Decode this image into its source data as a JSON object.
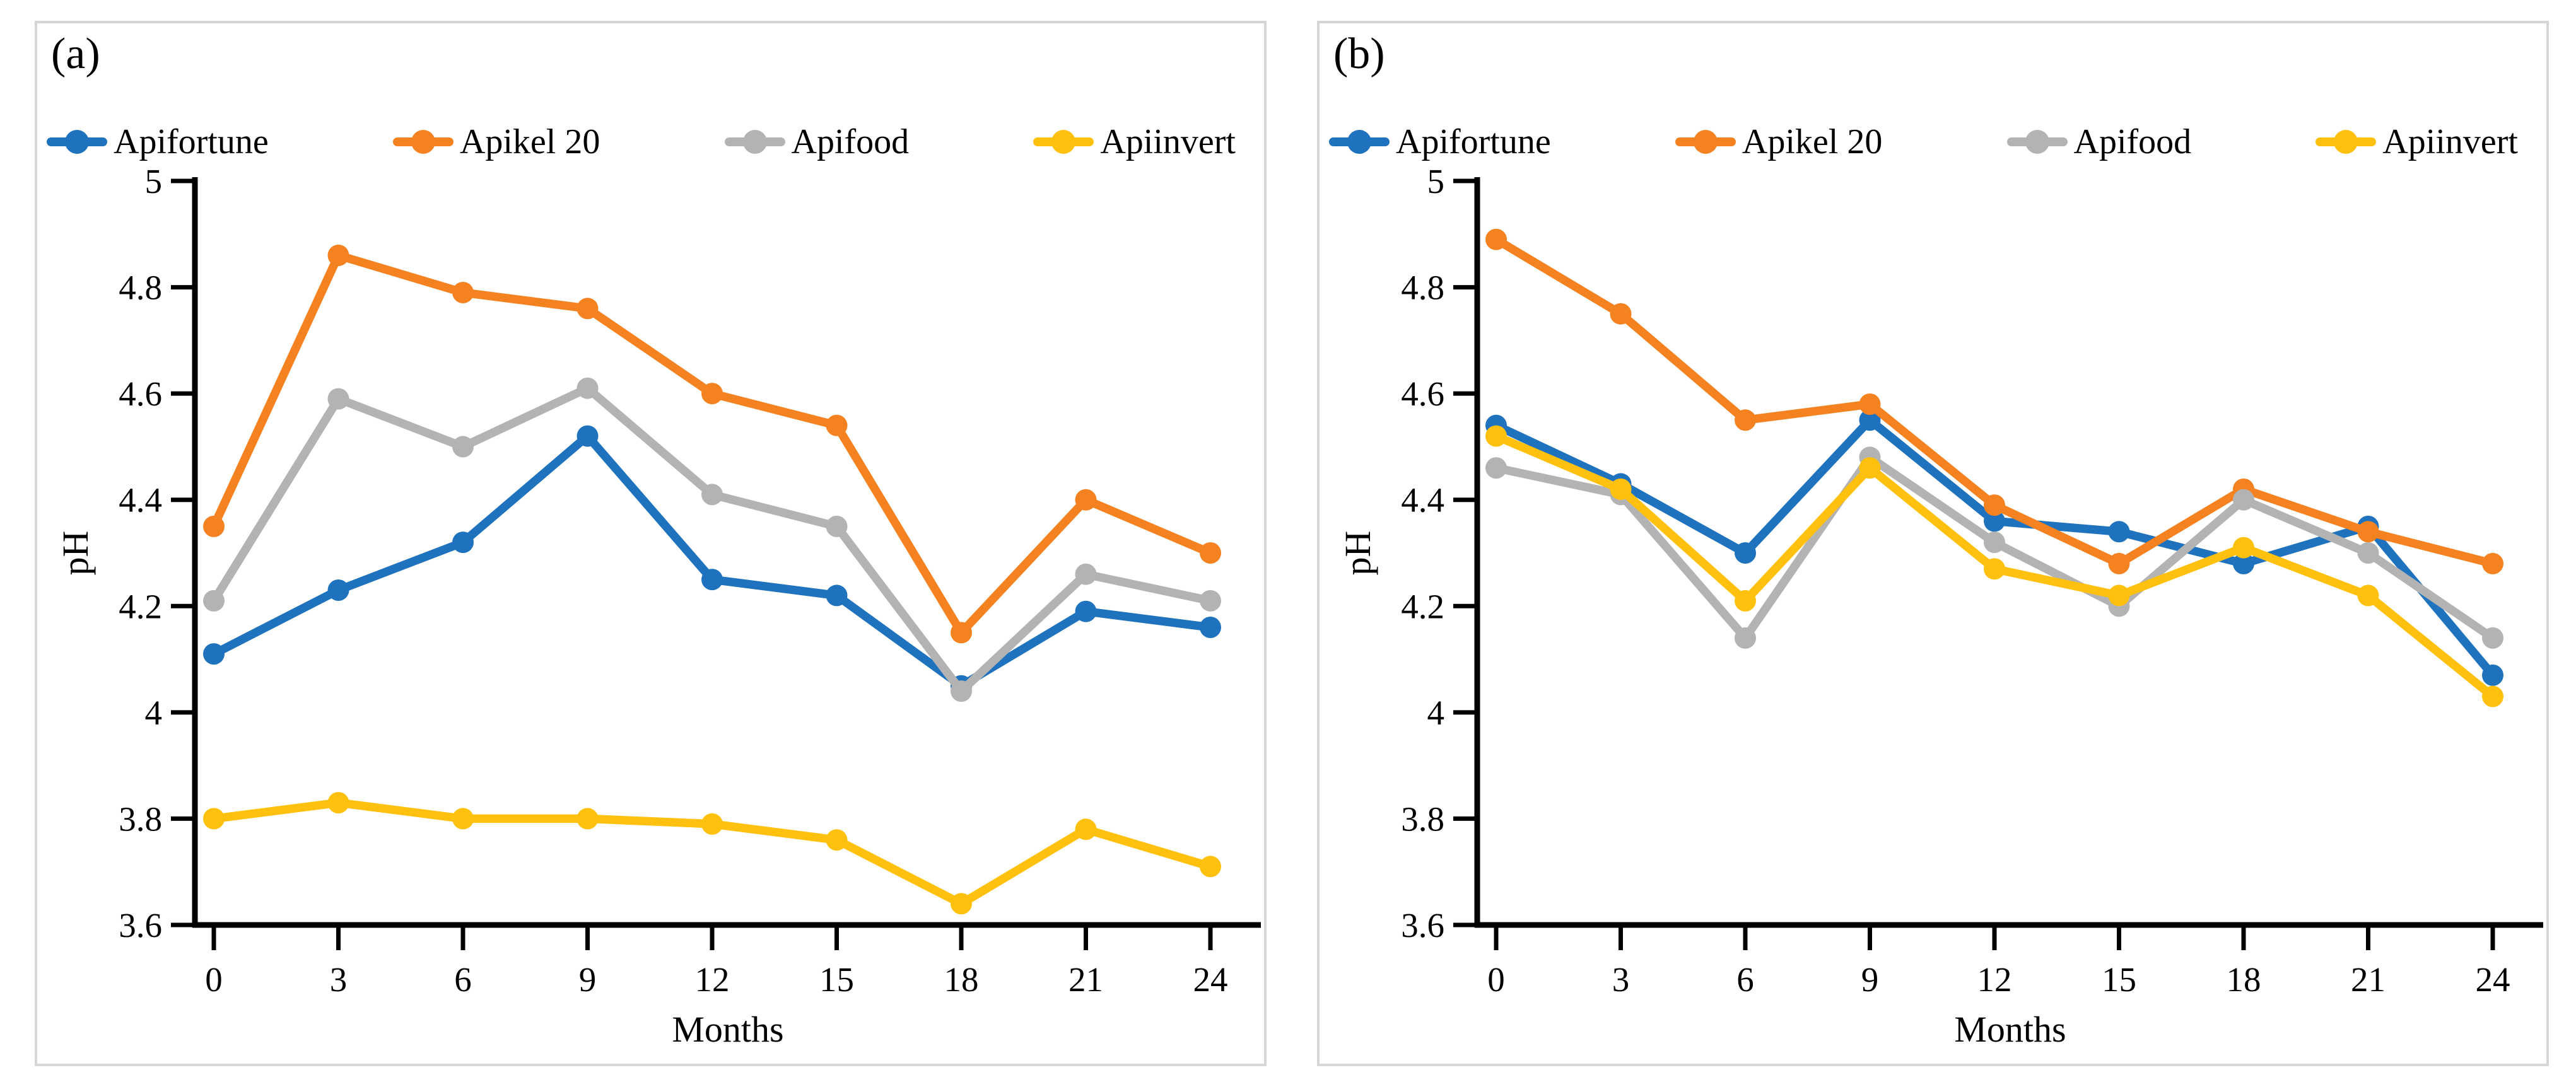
{
  "figure_background": "#ffffff",
  "panel_border_color": "#d6d6d6",
  "axis_color": "#000000",
  "chart_data": [
    {
      "type": "line",
      "panel_label": "(a)",
      "xlabel": "Months",
      "ylabel": "pH",
      "x": [
        0,
        3,
        6,
        9,
        12,
        15,
        18,
        21,
        24
      ],
      "xtick_labels": [
        "0",
        "3",
        "6",
        "9",
        "12",
        "15",
        "18",
        "21",
        "24"
      ],
      "ylim": [
        3.6,
        5.0
      ],
      "ytick_step": 0.2,
      "ytick_labels": [
        "5",
        "4.8",
        "4.6",
        "4.4",
        "4.2",
        "4",
        "3.8",
        "3.6"
      ],
      "grid": false,
      "legend_position": "top",
      "series": [
        {
          "name": "Apifortune",
          "color": "#1f72be",
          "values": [
            4.11,
            4.23,
            4.32,
            4.52,
            4.25,
            4.22,
            4.05,
            4.19,
            4.16
          ]
        },
        {
          "name": "Apikel 20",
          "color": "#f58220",
          "values": [
            4.35,
            4.86,
            4.79,
            4.76,
            4.6,
            4.54,
            4.15,
            4.4,
            4.3
          ]
        },
        {
          "name": "Apifood",
          "color": "#b3b3b3",
          "values": [
            4.21,
            4.59,
            4.5,
            4.61,
            4.41,
            4.35,
            4.04,
            4.26,
            4.21
          ]
        },
        {
          "name": "Apiinvert",
          "color": "#ffc10e",
          "values": [
            3.8,
            3.83,
            3.8,
            3.8,
            3.79,
            3.76,
            3.64,
            3.78,
            3.71
          ]
        }
      ]
    },
    {
      "type": "line",
      "panel_label": "(b)",
      "xlabel": "Months",
      "ylabel": "pH",
      "x": [
        0,
        3,
        6,
        9,
        12,
        15,
        18,
        21,
        24
      ],
      "xtick_labels": [
        "0",
        "3",
        "6",
        "9",
        "12",
        "15",
        "18",
        "21",
        "24"
      ],
      "ylim": [
        3.6,
        5.0
      ],
      "ytick_step": 0.2,
      "ytick_labels": [
        "5",
        "4.8",
        "4.6",
        "4.4",
        "4.2",
        "4",
        "3.8",
        "3.6"
      ],
      "grid": false,
      "legend_position": "top",
      "series": [
        {
          "name": "Apifortune",
          "color": "#1f72be",
          "values": [
            4.54,
            4.43,
            4.3,
            4.55,
            4.36,
            4.34,
            4.28,
            4.35,
            4.07
          ]
        },
        {
          "name": "Apikel 20",
          "color": "#f58220",
          "values": [
            4.89,
            4.75,
            4.55,
            4.58,
            4.39,
            4.28,
            4.42,
            4.34,
            4.28
          ]
        },
        {
          "name": "Apifood",
          "color": "#b3b3b3",
          "values": [
            4.46,
            4.41,
            4.14,
            4.48,
            4.32,
            4.2,
            4.4,
            4.3,
            4.14
          ]
        },
        {
          "name": "Apiinvert",
          "color": "#ffc10e",
          "values": [
            4.52,
            4.42,
            4.21,
            4.46,
            4.27,
            4.22,
            4.31,
            4.22,
            4.03
          ]
        }
      ]
    }
  ]
}
